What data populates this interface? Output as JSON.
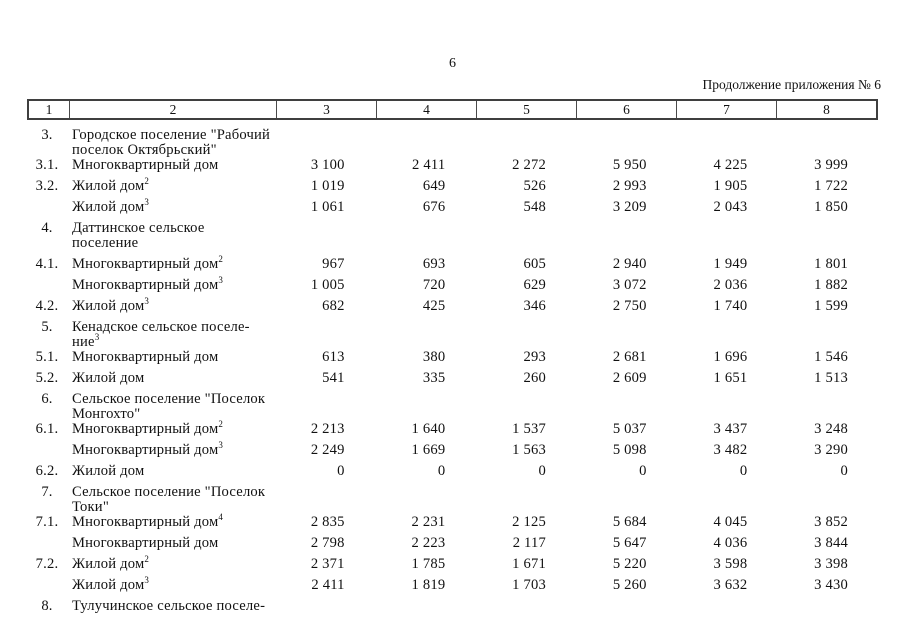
{
  "page": {
    "number": "6",
    "caption": "Продолжение приложения № 6"
  },
  "table": {
    "column_headers": [
      "1",
      "2",
      "3",
      "4",
      "5",
      "6",
      "7",
      "8"
    ],
    "rows": [
      {
        "num": "3.",
        "type": "section",
        "label_lines": [
          {
            "text": "Городское поселение \"Рабочий"
          },
          {
            "text": "поселок Октябрьский\""
          }
        ],
        "values": []
      },
      {
        "num": "3.1.",
        "type": "data",
        "label_lines": [
          {
            "text": "Многоквартирный дом"
          }
        ],
        "values": [
          "3 100",
          "2 411",
          "2 272",
          "5 950",
          "4 225",
          "3 999"
        ]
      },
      {
        "num": "3.2.",
        "type": "data",
        "label_lines": [
          {
            "text": "Жилой дом",
            "sup": "2"
          }
        ],
        "values": [
          "1 019",
          "649",
          "526",
          "2 993",
          "1 905",
          "1 722"
        ]
      },
      {
        "num": "",
        "type": "data",
        "label_lines": [
          {
            "text": "Жилой дом",
            "sup": "3"
          }
        ],
        "values": [
          "1 061",
          "676",
          "548",
          "3 209",
          "2 043",
          "1 850"
        ]
      },
      {
        "num": "4.",
        "type": "section",
        "label_lines": [
          {
            "text": "Даттинское сельское поселение"
          }
        ],
        "values": []
      },
      {
        "num": "4.1.",
        "type": "data",
        "label_lines": [
          {
            "text": "Многоквартирный дом",
            "sup": "2"
          }
        ],
        "values": [
          "967",
          "693",
          "605",
          "2 940",
          "1 949",
          "1 801"
        ]
      },
      {
        "num": "",
        "type": "data",
        "label_lines": [
          {
            "text": "Многоквартирный дом",
            "sup": "3"
          }
        ],
        "values": [
          "1 005",
          "720",
          "629",
          "3 072",
          "2 036",
          "1 882"
        ]
      },
      {
        "num": "4.2.",
        "type": "data",
        "label_lines": [
          {
            "text": "Жилой дом",
            "sup": "3"
          }
        ],
        "values": [
          "682",
          "425",
          "346",
          "2 750",
          "1 740",
          "1 599"
        ]
      },
      {
        "num": "5.",
        "type": "section",
        "label_lines": [
          {
            "text": "Кенадское сельское поселе-"
          },
          {
            "text": "ние",
            "sup": "3"
          }
        ],
        "values": []
      },
      {
        "num": "5.1.",
        "type": "data",
        "label_lines": [
          {
            "text": "Многоквартирный дом"
          }
        ],
        "values": [
          "613",
          "380",
          "293",
          "2 681",
          "1 696",
          "1 546"
        ]
      },
      {
        "num": "5.2.",
        "type": "data",
        "label_lines": [
          {
            "text": "Жилой дом"
          }
        ],
        "values": [
          "541",
          "335",
          "260",
          "2 609",
          "1 651",
          "1 513"
        ]
      },
      {
        "num": "6.",
        "type": "section",
        "label_lines": [
          {
            "text": "Сельское поселение \"Поселок"
          },
          {
            "text": "Монгохто\""
          }
        ],
        "values": []
      },
      {
        "num": "6.1.",
        "type": "data",
        "label_lines": [
          {
            "text": "Многоквартирный дом",
            "sup": "2"
          }
        ],
        "values": [
          "2 213",
          "1 640",
          "1 537",
          "5 037",
          "3 437",
          "3 248"
        ]
      },
      {
        "num": "",
        "type": "data",
        "label_lines": [
          {
            "text": "Многоквартирный дом",
            "sup": "3"
          }
        ],
        "values": [
          "2 249",
          "1 669",
          "1 563",
          "5 098",
          "3 482",
          "3 290"
        ]
      },
      {
        "num": "6.2.",
        "type": "data",
        "label_lines": [
          {
            "text": "Жилой дом"
          }
        ],
        "values": [
          "0",
          "0",
          "0",
          "0",
          "0",
          "0"
        ]
      },
      {
        "num": "7.",
        "type": "section",
        "label_lines": [
          {
            "text": "Сельское поселение \"Поселок"
          },
          {
            "text": "Токи\""
          }
        ],
        "values": []
      },
      {
        "num": "7.1.",
        "type": "data",
        "label_lines": [
          {
            "text": "Многоквартирный дом",
            "sup": "4"
          }
        ],
        "values": [
          "2 835",
          "2 231",
          "2 125",
          "5 684",
          "4 045",
          "3 852"
        ]
      },
      {
        "num": "",
        "type": "data",
        "label_lines": [
          {
            "text": "Многоквартирный дом"
          }
        ],
        "values": [
          "2 798",
          "2 223",
          "2 117",
          "5 647",
          "4 036",
          "3 844"
        ]
      },
      {
        "num": "7.2.",
        "type": "data",
        "label_lines": [
          {
            "text": "Жилой дом",
            "sup": "2"
          }
        ],
        "values": [
          "2 371",
          "1 785",
          "1 671",
          "5 220",
          "3 598",
          "3 398"
        ]
      },
      {
        "num": "",
        "type": "data",
        "label_lines": [
          {
            "text": "Жилой дом",
            "sup": "3"
          }
        ],
        "values": [
          "2 411",
          "1 819",
          "1 703",
          "5 260",
          "3 632",
          "3 430"
        ]
      },
      {
        "num": "8.",
        "type": "section",
        "label_lines": [
          {
            "text": "Тулучинское сельское поселе-"
          }
        ],
        "values": []
      }
    ]
  }
}
